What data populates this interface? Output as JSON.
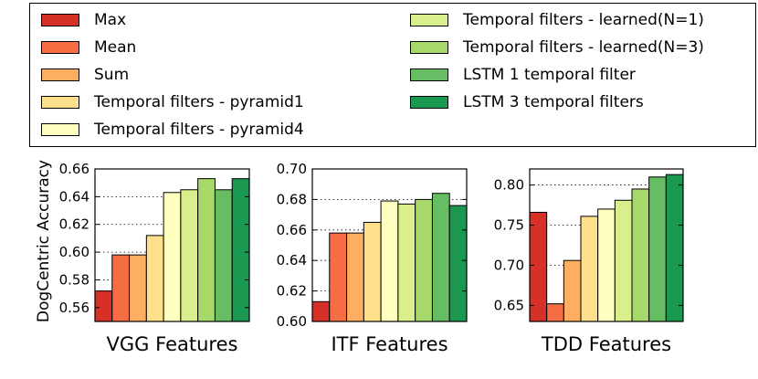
{
  "chart_data": {
    "type": "bar",
    "ylabel": "DogCentric Accuracy",
    "legend": {
      "placement": "top",
      "entries": [
        {
          "label": "Max",
          "color": "#d73027"
        },
        {
          "label": "Mean",
          "color": "#f46d43"
        },
        {
          "label": "Sum",
          "color": "#fdae61"
        },
        {
          "label": "Temporal filters - pyramid1",
          "color": "#fee08b"
        },
        {
          "label": "Temporal filters - pyramid4",
          "color": "#ffffbf"
        },
        {
          "label": "Temporal filters - learned(N=1)",
          "color": "#d9ef8b"
        },
        {
          "label": "Temporal filters - learned(N=3)",
          "color": "#a6d96a"
        },
        {
          "label": "LSTM 1 temporal filter",
          "color": "#66bd63"
        },
        {
          "label": "LSTM 3 temporal filters",
          "color": "#1a9850"
        }
      ]
    },
    "panels": [
      {
        "title": "VGG Features",
        "ylim": [
          0.55,
          0.66
        ],
        "yticks": [
          0.56,
          0.58,
          0.6,
          0.62,
          0.64,
          0.66
        ],
        "ytick_labels": [
          "0.56",
          "0.58",
          "0.60",
          "0.62",
          "0.64",
          "0.66"
        ],
        "values": [
          0.572,
          0.598,
          0.598,
          0.612,
          0.643,
          0.645,
          0.653,
          0.645,
          0.653
        ]
      },
      {
        "title": "ITF Features",
        "ylim": [
          0.6,
          0.7
        ],
        "yticks": [
          0.6,
          0.62,
          0.64,
          0.66,
          0.68,
          0.7
        ],
        "ytick_labels": [
          "0.60",
          "0.62",
          "0.64",
          "0.66",
          "0.68",
          "0.70"
        ],
        "values": [
          0.613,
          0.658,
          0.658,
          0.665,
          0.679,
          0.677,
          0.68,
          0.684,
          0.676
        ]
      },
      {
        "title": "TDD Features",
        "ylim": [
          0.63,
          0.82
        ],
        "yticks": [
          0.65,
          0.7,
          0.75,
          0.8
        ],
        "ytick_labels": [
          "0.65",
          "0.70",
          "0.75",
          "0.80"
        ],
        "values": [
          0.766,
          0.652,
          0.706,
          0.761,
          0.77,
          0.781,
          0.795,
          0.81,
          0.813
        ]
      }
    ]
  }
}
